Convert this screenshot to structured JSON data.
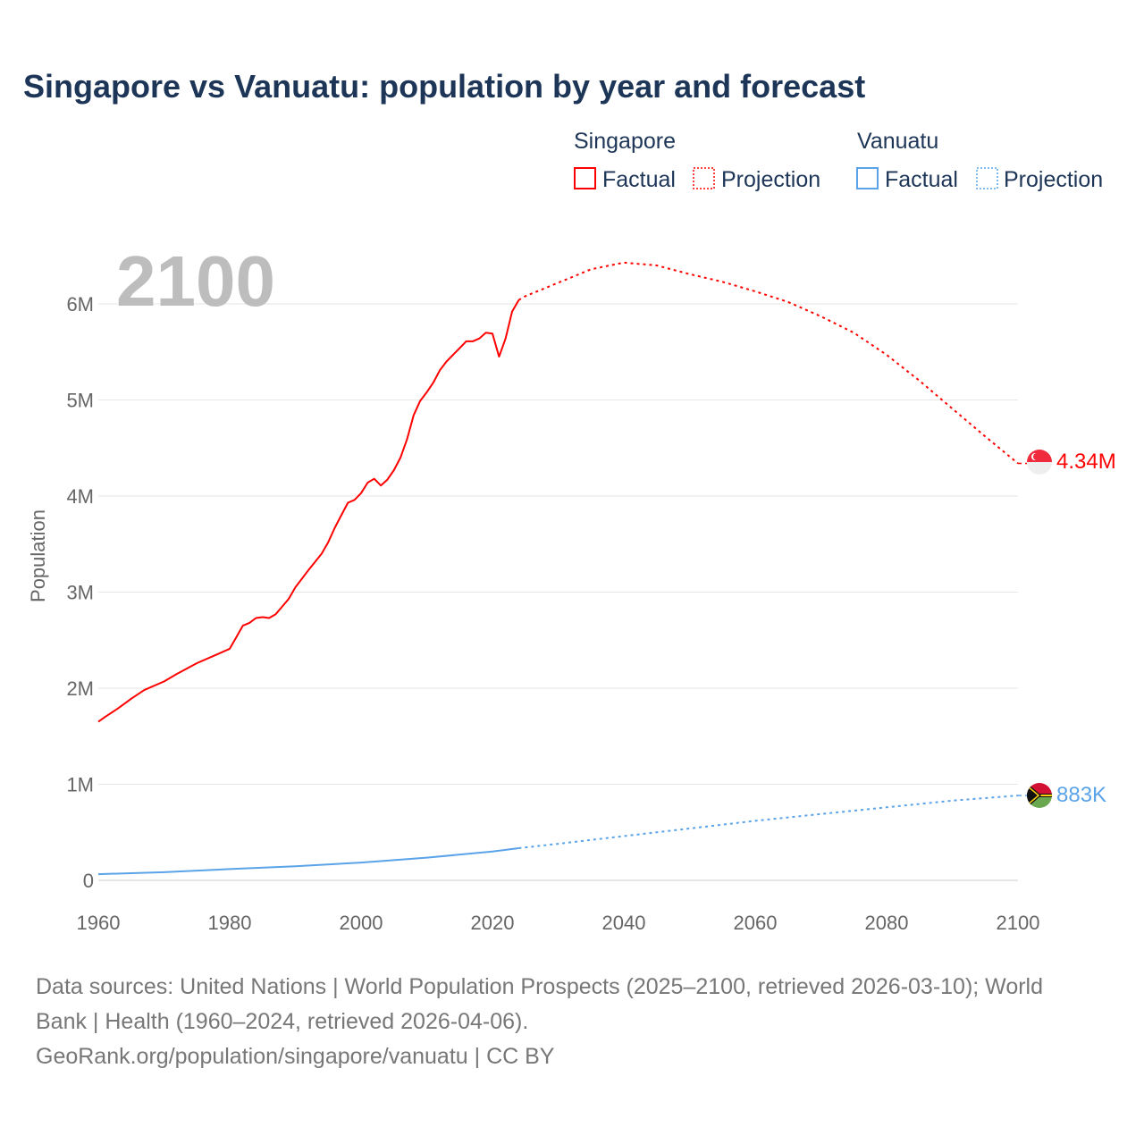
{
  "title": "Singapore vs Vanuatu: population by year and forecast",
  "year_overlay": "2100",
  "legend": {
    "groups": [
      {
        "name": "Singapore",
        "factual": "Factual",
        "projection": "Projection",
        "color": "#ff0000"
      },
      {
        "name": "Vanuatu",
        "factual": "Factual",
        "projection": "Projection",
        "color": "#5aa3e8"
      }
    ]
  },
  "sources": {
    "line1": "Data sources: United Nations | World Population Prospects (2025–2100, retrieved 2026-03-10); World",
    "line2": "Bank | Health (1960–2024, retrieved 2026-04-06).",
    "line3": "GeoRank.org/population/singapore/vanuatu | CC BY"
  },
  "chart_data": {
    "type": "line",
    "title": "Singapore vs Vanuatu: population by year and forecast",
    "xlabel": "",
    "ylabel": "Population",
    "xlim": [
      1960,
      2100
    ],
    "ylim": [
      0,
      6500000
    ],
    "x_ticks": [
      1960,
      1980,
      2000,
      2020,
      2040,
      2060,
      2080,
      2100
    ],
    "x_tick_labels": [
      "1960",
      "1980",
      "2000",
      "2020",
      "2040",
      "2060",
      "2080",
      "2100"
    ],
    "y_ticks": [
      0,
      1000000,
      2000000,
      3000000,
      4000000,
      5000000,
      6000000
    ],
    "y_tick_labels": [
      "0",
      "1M",
      "2M",
      "3M",
      "4M",
      "5M",
      "6M"
    ],
    "grid": true,
    "legend_position": "top-right",
    "series": [
      {
        "name": "Singapore",
        "color": "#ff0000",
        "end_label": "4.34M",
        "factual": [
          [
            1960,
            1.65
          ],
          [
            1961,
            1.7
          ],
          [
            1963,
            1.79
          ],
          [
            1965,
            1.89
          ],
          [
            1967,
            1.98
          ],
          [
            1970,
            2.07
          ],
          [
            1972,
            2.15
          ],
          [
            1975,
            2.26
          ],
          [
            1978,
            2.35
          ],
          [
            1980,
            2.41
          ],
          [
            1981,
            2.53
          ],
          [
            1982,
            2.65
          ],
          [
            1983,
            2.68
          ],
          [
            1984,
            2.73
          ],
          [
            1985,
            2.74
          ],
          [
            1986,
            2.73
          ],
          [
            1987,
            2.77
          ],
          [
            1988,
            2.85
          ],
          [
            1989,
            2.93
          ],
          [
            1990,
            3.05
          ],
          [
            1992,
            3.23
          ],
          [
            1994,
            3.4
          ],
          [
            1995,
            3.52
          ],
          [
            1996,
            3.67
          ],
          [
            1997,
            3.8
          ],
          [
            1998,
            3.93
          ],
          [
            1999,
            3.96
          ],
          [
            2000,
            4.03
          ],
          [
            2001,
            4.14
          ],
          [
            2002,
            4.18
          ],
          [
            2003,
            4.11
          ],
          [
            2004,
            4.17
          ],
          [
            2005,
            4.27
          ],
          [
            2006,
            4.4
          ],
          [
            2007,
            4.59
          ],
          [
            2008,
            4.84
          ],
          [
            2009,
            4.99
          ],
          [
            2010,
            5.08
          ],
          [
            2011,
            5.18
          ],
          [
            2012,
            5.31
          ],
          [
            2013,
            5.4
          ],
          [
            2014,
            5.47
          ],
          [
            2015,
            5.54
          ],
          [
            2016,
            5.61
          ],
          [
            2017,
            5.61
          ],
          [
            2018,
            5.64
          ],
          [
            2019,
            5.7
          ],
          [
            2020,
            5.69
          ],
          [
            2021,
            5.45
          ],
          [
            2022,
            5.64
          ],
          [
            2023,
            5.92
          ],
          [
            2024,
            6.04
          ]
        ],
        "projection": [
          [
            2024,
            6.04
          ],
          [
            2025,
            6.08
          ],
          [
            2030,
            6.22
          ],
          [
            2035,
            6.36
          ],
          [
            2040,
            6.43
          ],
          [
            2045,
            6.4
          ],
          [
            2050,
            6.31
          ],
          [
            2055,
            6.23
          ],
          [
            2060,
            6.13
          ],
          [
            2065,
            6.02
          ],
          [
            2070,
            5.87
          ],
          [
            2075,
            5.7
          ],
          [
            2080,
            5.47
          ],
          [
            2085,
            5.2
          ],
          [
            2090,
            4.91
          ],
          [
            2095,
            4.62
          ],
          [
            2100,
            4.34
          ]
        ]
      },
      {
        "name": "Vanuatu",
        "color": "#5aa3e8",
        "end_label": "883K",
        "factual": [
          [
            1960,
            0.064
          ],
          [
            1970,
            0.085
          ],
          [
            1980,
            0.117
          ],
          [
            1990,
            0.147
          ],
          [
            2000,
            0.185
          ],
          [
            2010,
            0.236
          ],
          [
            2020,
            0.3
          ],
          [
            2024,
            0.335
          ]
        ],
        "projection": [
          [
            2024,
            0.335
          ],
          [
            2030,
            0.38
          ],
          [
            2040,
            0.46
          ],
          [
            2050,
            0.54
          ],
          [
            2060,
            0.62
          ],
          [
            2070,
            0.69
          ],
          [
            2080,
            0.76
          ],
          [
            2090,
            0.83
          ],
          [
            2100,
            0.883
          ]
        ]
      }
    ],
    "value_unit": "millions"
  }
}
